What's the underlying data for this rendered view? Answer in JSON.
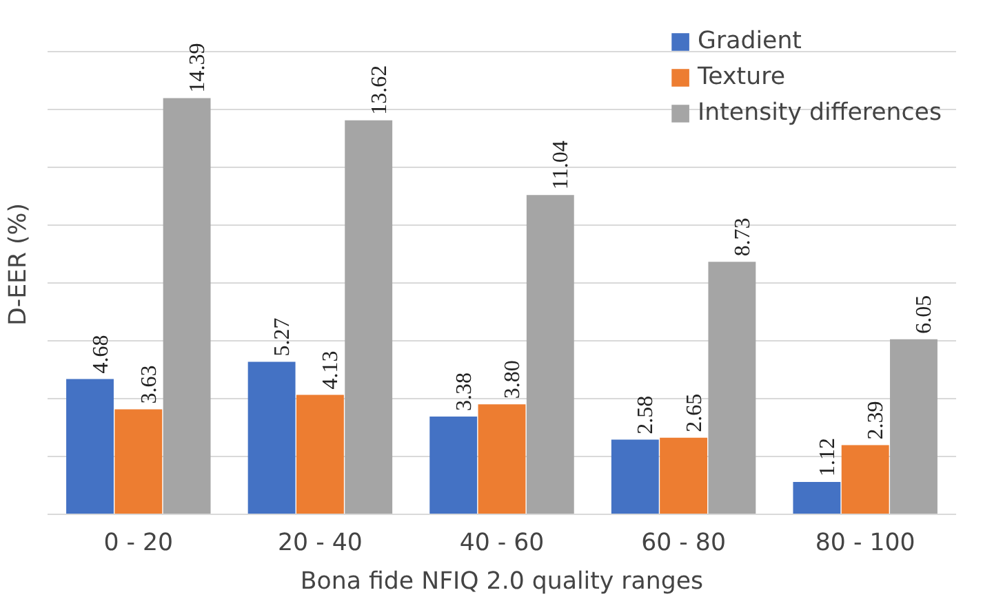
{
  "chart_data": {
    "type": "bar",
    "xlabel": "Bona fide NFIQ 2.0 quality ranges",
    "ylabel": "D-EER (%)",
    "categories": [
      "0 - 20",
      "20 - 40",
      "40 - 60",
      "60 - 80",
      "80 - 100"
    ],
    "series": [
      {
        "name": "Gradient",
        "color": "#4472c4",
        "values": [
          4.68,
          5.27,
          3.38,
          2.58,
          1.12
        ],
        "value_labels": [
          "4.68",
          "5.27",
          "3.38",
          "2.58",
          "1.12"
        ]
      },
      {
        "name": "Texture",
        "color": "#ed7d31",
        "values": [
          3.63,
          4.13,
          3.8,
          2.65,
          2.39
        ],
        "value_labels": [
          "3.63",
          "4.13",
          "3.80",
          "2.65",
          "2.39"
        ]
      },
      {
        "name": "Intensity differences",
        "color": "#a5a5a5",
        "values": [
          14.39,
          13.62,
          11.04,
          8.73,
          6.05
        ],
        "value_labels": [
          "14.39",
          "13.62",
          "11.04",
          "8.73",
          "6.05"
        ]
      }
    ],
    "yticks": [
      {
        "value": 0,
        "label": null
      },
      {
        "value": 2,
        "label": null
      },
      {
        "value": 4,
        "label": null
      },
      {
        "value": 6,
        "label": null
      },
      {
        "value": 8,
        "label": null
      },
      {
        "value": 10,
        "label": null
      },
      {
        "value": 12,
        "label": null
      },
      {
        "value": 14,
        "label": null
      },
      {
        "value": 16,
        "label": null
      }
    ],
    "tick_labels": "x",
    "grid": "y",
    "legend": "top right"
  }
}
